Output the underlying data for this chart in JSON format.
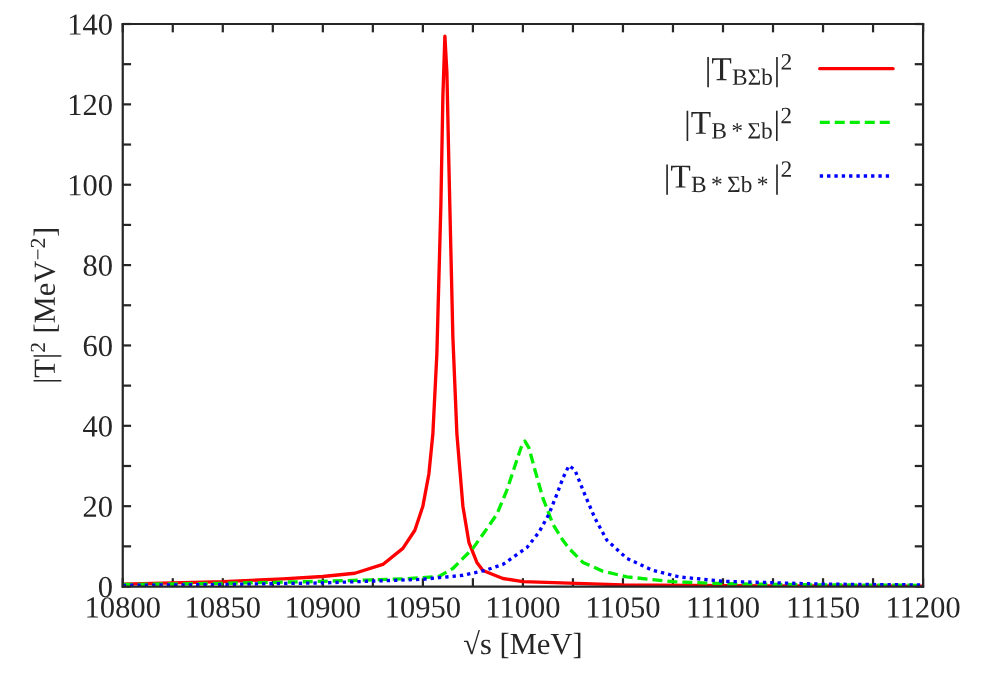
{
  "chart_data": {
    "type": "line",
    "xlabel": "√s [MeV]",
    "ylabel": "|T|$^{2}$ [MeV$^{−2}$]",
    "xlim": [
      10800,
      11200
    ],
    "ylim": [
      0,
      140
    ],
    "xticks": [
      10800,
      {
        "value": 10825,
        "label": null
      },
      10850,
      {
        "value": 10875,
        "label": null
      },
      10900,
      {
        "value": 10925,
        "label": null
      },
      10950,
      {
        "value": 10975,
        "label": null
      },
      11000,
      {
        "value": 11025,
        "label": null
      },
      11050,
      {
        "value": 11075,
        "label": null
      },
      11100,
      {
        "value": 11125,
        "label": null
      },
      11150,
      {
        "value": 11175,
        "label": null
      },
      11200
    ],
    "yticks": [
      0,
      {
        "value": 10,
        "label": null
      },
      20,
      {
        "value": 30,
        "label": null
      },
      40,
      {
        "value": 50,
        "label": null
      },
      60,
      {
        "value": 70,
        "label": null
      },
      80,
      {
        "value": 90,
        "label": null
      },
      100,
      {
        "value": 110,
        "label": null
      },
      120,
      {
        "value": 130,
        "label": null
      },
      140
    ],
    "grid": false,
    "legend": "top right",
    "marker": "none",
    "series": [
      {
        "name": "|T$_{BΣb}$|$^{2}$",
        "color": "#ff0000",
        "line_style": "solid",
        "x": [
          10800,
          10850,
          10880,
          10900,
          10916,
          10930,
          10940,
          10946,
          10950,
          10953,
          10955,
          10957,
          10959,
          10960,
          10961,
          10962,
          10963,
          10965,
          10967,
          10970,
          10973,
          10977,
          10980,
          10990,
          11000,
          11050,
          11100,
          11200
        ],
        "values": [
          0.6,
          1.2,
          1.9,
          2.5,
          3.3,
          5.5,
          9.5,
          14,
          20,
          28,
          38,
          58,
          95,
          122,
          137,
          128,
          105,
          62,
          38,
          20,
          11,
          6,
          4,
          2,
          1.2,
          0.4,
          0.2,
          0.1
        ]
      },
      {
        "name": "|T$_{B*Σb}$|$^{2}$",
        "color": "#00ee00",
        "line_style": "dashed",
        "x": [
          10800,
          10850,
          10900,
          10940,
          10958,
          10965,
          10970,
          10975,
          10981,
          10987,
          10992,
          10996,
          10999,
          11001,
          11003,
          11006,
          11010,
          11015,
          11020,
          11023,
          11030,
          11040,
          11052,
          11075,
          11100,
          11150,
          11200
        ],
        "values": [
          0.5,
          0.8,
          1.3,
          1.9,
          2.5,
          4.5,
          7,
          9.5,
          13.7,
          18,
          24,
          30,
          34.5,
          36.2,
          34.5,
          29,
          22,
          15.5,
          11.5,
          9.5,
          6,
          3.8,
          2.4,
          1.2,
          0.7,
          0.4,
          0.3
        ]
      },
      {
        "name": "|T$_{B*Σb*}$|$^{2}$",
        "color": "#0000ff",
        "line_style": "dotted",
        "x": [
          10800,
          10850,
          10900,
          10950,
          10970,
          10981,
          10990,
          11002,
          11008,
          11013,
          11017,
          11020,
          11023,
          11026,
          11030,
          11036,
          11042,
          11052,
          11065,
          11078,
          11100,
          11150,
          11200
        ],
        "values": [
          0.3,
          0.5,
          0.9,
          1.8,
          2.8,
          4,
          5.5,
          9.7,
          13.5,
          18,
          23,
          27,
          30.1,
          29,
          24,
          17,
          11.5,
          7,
          4,
          2.4,
          1.3,
          0.6,
          0.4
        ]
      }
    ]
  }
}
